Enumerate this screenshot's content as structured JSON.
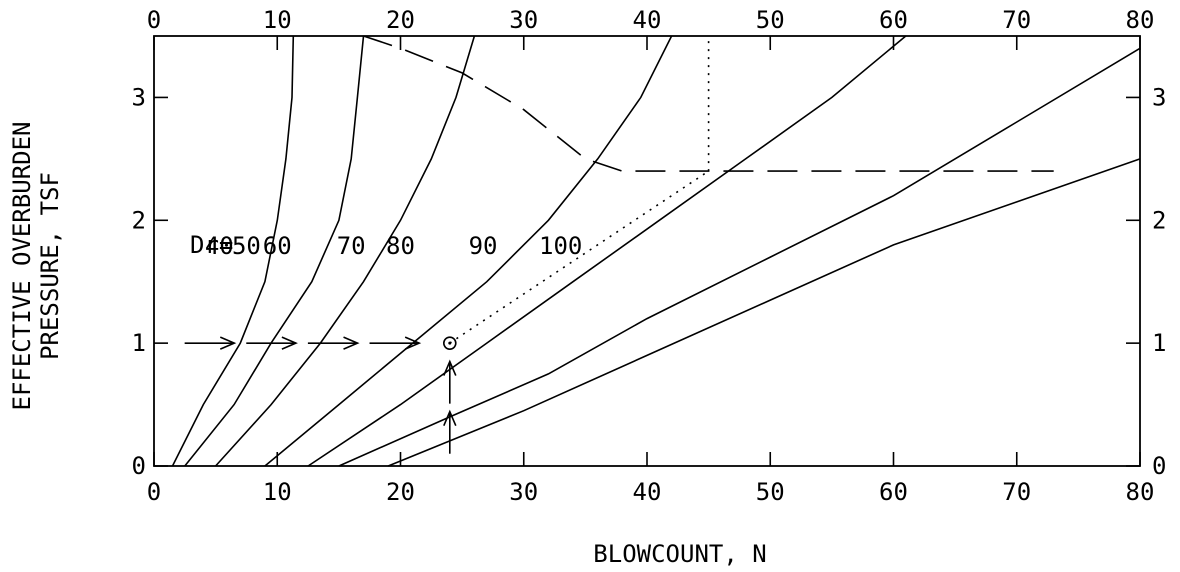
{
  "chart_data": {
    "type": "line",
    "xlabel": "BLOWCOUNT, N",
    "ylabel_lines": [
      "EFFECTIVE OVERBURDEN",
      "PRESSURE, TSF"
    ],
    "xlim": [
      0,
      80
    ],
    "ylim": [
      0,
      3.5
    ],
    "x_ticks": [
      0,
      10,
      20,
      30,
      40,
      50,
      60,
      70,
      80
    ],
    "y_ticks": [
      0,
      1,
      2,
      3
    ],
    "x_tick_labels": [
      "0",
      "10",
      "20",
      "30",
      "40",
      "50",
      "60",
      "70",
      "80"
    ],
    "y_tick_labels": [
      "0",
      "1",
      "2",
      "3"
    ],
    "legend_prefix": "Dr=",
    "series": [
      {
        "name": "40",
        "points": [
          [
            1.5,
            0
          ],
          [
            4,
            0.5
          ],
          [
            7,
            1.0
          ],
          [
            9,
            1.5
          ],
          [
            10,
            2.0
          ],
          [
            10.7,
            2.5
          ],
          [
            11.2,
            3.0
          ],
          [
            11.3,
            3.5
          ]
        ]
      },
      {
        "name": "50",
        "points": [
          [
            2.5,
            0
          ],
          [
            6.5,
            0.5
          ],
          [
            9.5,
            1.0
          ],
          [
            12.8,
            1.5
          ],
          [
            15,
            2.0
          ],
          [
            16,
            2.5
          ],
          [
            16.5,
            3.0
          ],
          [
            17,
            3.5
          ]
        ]
      },
      {
        "name": "60",
        "points": [
          [
            5,
            0
          ],
          [
            9.5,
            0.5
          ],
          [
            13.5,
            1.0
          ],
          [
            17,
            1.5
          ],
          [
            20,
            2.0
          ],
          [
            22.5,
            2.5
          ],
          [
            24.5,
            3.0
          ],
          [
            26,
            3.5
          ]
        ]
      },
      {
        "name": "70",
        "points": [
          [
            9,
            0
          ],
          [
            15,
            0.5
          ],
          [
            21,
            1.0
          ],
          [
            27,
            1.5
          ],
          [
            32,
            2.0
          ],
          [
            36,
            2.5
          ],
          [
            39.5,
            3.0
          ],
          [
            42,
            3.5
          ]
        ]
      },
      {
        "name": "80",
        "points": [
          [
            12.5,
            0
          ],
          [
            20,
            0.5
          ],
          [
            27,
            1.0
          ],
          [
            34,
            1.5
          ],
          [
            41,
            2.0
          ],
          [
            48,
            2.5
          ],
          [
            55,
            3.0
          ],
          [
            61,
            3.5
          ]
        ]
      },
      {
        "name": "90",
        "points": [
          [
            15,
            0
          ],
          [
            24,
            0.4
          ],
          [
            32,
            0.75
          ],
          [
            40,
            1.2
          ],
          [
            50,
            1.7
          ],
          [
            60,
            2.2
          ],
          [
            70,
            2.8
          ],
          [
            80,
            3.4
          ]
        ]
      },
      {
        "name": "100",
        "points": [
          [
            19,
            0
          ],
          [
            30,
            0.45
          ],
          [
            40,
            0.9
          ],
          [
            50,
            1.35
          ],
          [
            60,
            1.8
          ],
          [
            70,
            2.15
          ],
          [
            80,
            2.5
          ]
        ]
      }
    ],
    "dr_label_positions": {
      "40": [
        5.3,
        1.8
      ],
      "50": [
        7.5,
        1.8
      ],
      "60": [
        10,
        1.8
      ],
      "70": [
        16,
        1.8
      ],
      "80": [
        20,
        1.8
      ],
      "90": [
        26.7,
        1.8
      ],
      "100": [
        33,
        1.8
      ]
    },
    "limit_curve": [
      [
        17,
        3.5
      ],
      [
        20,
        3.4
      ],
      [
        25,
        3.2
      ],
      [
        30,
        2.9
      ],
      [
        35,
        2.5
      ],
      [
        38,
        2.4
      ],
      [
        73,
        2.4
      ]
    ],
    "worked_example": {
      "point": [
        24,
        1.0
      ],
      "dotted_path": [
        [
          24,
          1.0
        ],
        [
          45,
          2.4
        ]
      ],
      "vertical_dotted": [
        [
          45,
          2.4
        ],
        [
          45,
          3.5
        ]
      ],
      "arrow_line_y": 1.0,
      "arrow_line_x": [
        2,
        22
      ],
      "up_arrow_x": 24,
      "up_arrow_y": [
        0.1,
        0.85
      ]
    }
  }
}
